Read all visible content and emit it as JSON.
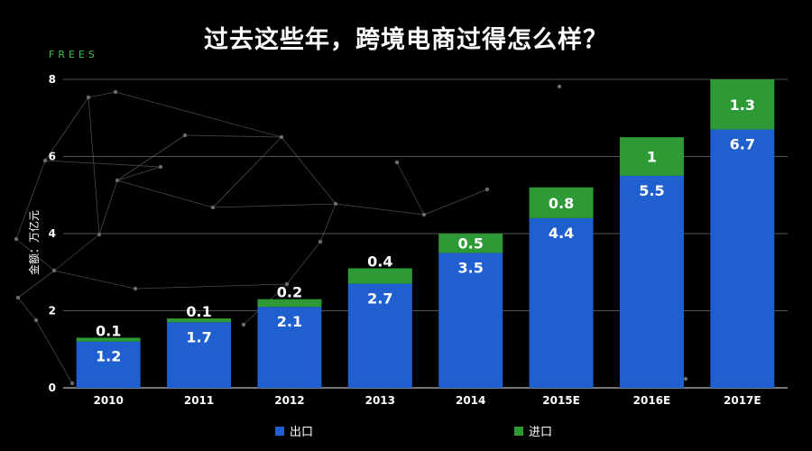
{
  "brand": "FREES",
  "colors": {
    "export": "#1f5fd0",
    "import": "#2e9a35",
    "background": "#000000"
  },
  "chart_data": {
    "type": "bar",
    "stacked": true,
    "title": "过去这些年，跨境电商过得怎么样？",
    "ylabel": "金额：万亿元",
    "xlabel": "",
    "ylim": [
      0,
      8
    ],
    "yticks": [
      0,
      2,
      4,
      6,
      8
    ],
    "grid": true,
    "legend_position": "bottom",
    "categories": [
      "2010",
      "2011",
      "2012",
      "2013",
      "2014",
      "2015E",
      "2016E",
      "2017E"
    ],
    "series": [
      {
        "name": "出口",
        "values": [
          1.2,
          1.7,
          2.1,
          2.7,
          3.5,
          4.4,
          5.5,
          6.7
        ],
        "labels": [
          "1.2",
          "1.7",
          "2.1",
          "2.7",
          "3.5",
          "4.4",
          "5.5",
          "6.7"
        ]
      },
      {
        "name": "进口",
        "values": [
          0.1,
          0.1,
          0.2,
          0.4,
          0.5,
          0.8,
          1,
          1.3
        ],
        "labels": [
          "0.1",
          "0.1",
          "0.2",
          "0.4",
          "0.5",
          "0.8",
          "1",
          "1.3"
        ]
      }
    ]
  }
}
